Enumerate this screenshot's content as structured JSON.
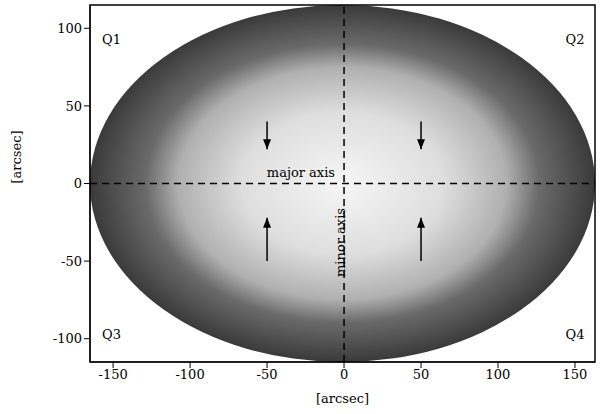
{
  "chart_data": {
    "type": "scatter",
    "x_label": "[arcsec]",
    "y_label": "[arcsec]",
    "xlim": [
      -165,
      163
    ],
    "ylim": [
      -115,
      115
    ],
    "xticks": [
      -150,
      -100,
      -50,
      0,
      50,
      100,
      150
    ],
    "yticks": [
      -100,
      -50,
      0,
      50,
      100
    ],
    "reference_lines": {
      "x": 0,
      "y": 0,
      "line_style": "dashed"
    },
    "annotations": [
      {
        "text": "Q1",
        "x": -151,
        "y": 93
      },
      {
        "text": "Q2",
        "x": 150,
        "y": 93
      },
      {
        "text": "Q3",
        "x": -151,
        "y": -97
      },
      {
        "text": "Q4",
        "x": 150,
        "y": -97
      }
    ],
    "major_axis_label": {
      "text": "major axis",
      "x": -28,
      "y": 7
    },
    "minor_axis_label": {
      "text": "minor axis",
      "x": -2,
      "y": -38
    },
    "arrows": [
      {
        "x": -50,
        "from": 40,
        "to": 22
      },
      {
        "x": 50,
        "from": 40,
        "to": 22
      },
      {
        "x": -50,
        "from": -50,
        "to": -22
      },
      {
        "x": 50,
        "from": -50,
        "to": -22
      }
    ]
  }
}
